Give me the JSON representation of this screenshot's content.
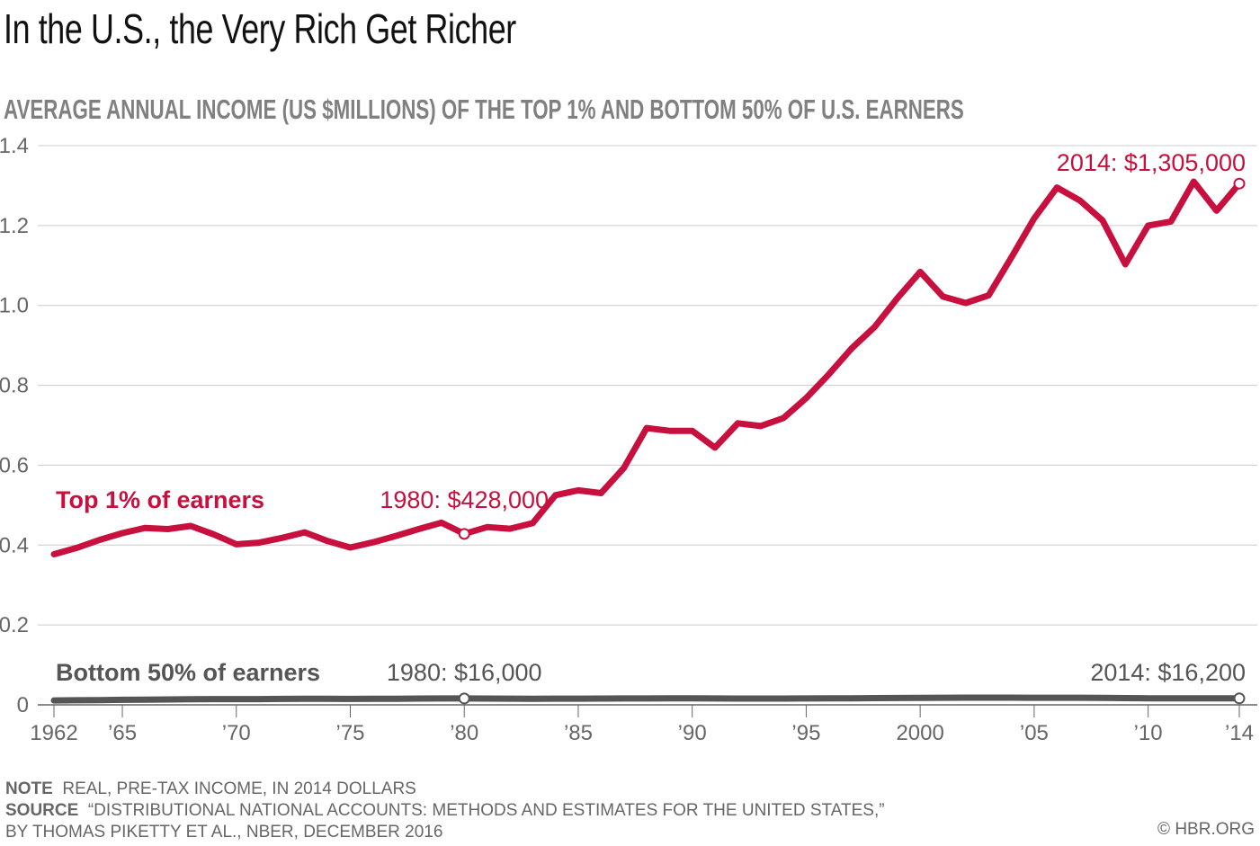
{
  "title": "In the U.S., the Very Rich Get Richer",
  "subtitle": "AVERAGE ANNUAL INCOME (US $MILLIONS) OF THE TOP 1% AND BOTTOM 50% OF U.S. EARNERS",
  "colors": {
    "top": "#c8103e",
    "bottom": "#555555",
    "grid": "#cccccc",
    "axis": "#666666"
  },
  "chart_data": {
    "type": "line",
    "title": "In the U.S., the Very Rich Get Richer",
    "subtitle": "AVERAGE ANNUAL INCOME (US $MILLIONS) OF THE TOP 1% AND BOTTOM 50% OF U.S. EARNERS",
    "xlabel": "",
    "ylabel": "",
    "ylim": [
      0,
      1.4
    ],
    "xlim": [
      1962,
      2014
    ],
    "grid": true,
    "y_ticks": [
      {
        "value": 0,
        "label": "0"
      },
      {
        "value": 0.2,
        "label": "0.2"
      },
      {
        "value": 0.4,
        "label": "0.4"
      },
      {
        "value": 0.6,
        "label": "0.6"
      },
      {
        "value": 0.8,
        "label": "0.8"
      },
      {
        "value": 1.0,
        "label": "1.0"
      },
      {
        "value": 1.2,
        "label": "1.2"
      },
      {
        "value": 1.4,
        "label": "$1.4"
      }
    ],
    "x_ticks": [
      {
        "value": 1962,
        "label": "1962"
      },
      {
        "value": 1965,
        "label": "’65"
      },
      {
        "value": 1970,
        "label": "’70"
      },
      {
        "value": 1975,
        "label": "’75"
      },
      {
        "value": 1980,
        "label": "’80"
      },
      {
        "value": 1985,
        "label": "’85"
      },
      {
        "value": 1990,
        "label": "’90"
      },
      {
        "value": 1995,
        "label": "’95"
      },
      {
        "value": 2000,
        "label": "2000"
      },
      {
        "value": 2005,
        "label": "’05"
      },
      {
        "value": 2010,
        "label": "’10"
      },
      {
        "value": 2014,
        "label": "’14"
      }
    ],
    "x": [
      1962,
      1963,
      1964,
      1965,
      1966,
      1967,
      1968,
      1969,
      1970,
      1971,
      1972,
      1973,
      1974,
      1975,
      1976,
      1977,
      1978,
      1979,
      1980,
      1981,
      1982,
      1983,
      1984,
      1985,
      1986,
      1987,
      1988,
      1989,
      1990,
      1991,
      1992,
      1993,
      1994,
      1995,
      1996,
      1997,
      1998,
      1999,
      2000,
      2001,
      2002,
      2003,
      2004,
      2005,
      2006,
      2007,
      2008,
      2009,
      2010,
      2011,
      2012,
      2013,
      2014
    ],
    "series": [
      {
        "name": "Top 1% of earners",
        "values": [
          0.377,
          0.393,
          0.413,
          0.43,
          0.443,
          0.44,
          0.448,
          0.427,
          0.402,
          0.406,
          0.418,
          0.432,
          0.41,
          0.394,
          0.407,
          0.423,
          0.44,
          0.456,
          0.428,
          0.445,
          0.441,
          0.455,
          0.525,
          0.537,
          0.53,
          0.593,
          0.693,
          0.686,
          0.686,
          0.644,
          0.705,
          0.698,
          0.718,
          0.768,
          0.828,
          0.893,
          0.946,
          1.018,
          1.084,
          1.022,
          1.006,
          1.025,
          1.12,
          1.218,
          1.295,
          1.263,
          1.213,
          1.103,
          1.2,
          1.21,
          1.31,
          1.237,
          1.305
        ]
      },
      {
        "name": "Bottom 50% of earners",
        "values": [
          0.011,
          0.0115,
          0.012,
          0.0125,
          0.013,
          0.0135,
          0.014,
          0.0145,
          0.0145,
          0.0145,
          0.0148,
          0.0152,
          0.0152,
          0.0148,
          0.015,
          0.0153,
          0.0157,
          0.016,
          0.016,
          0.0158,
          0.0155,
          0.0153,
          0.0155,
          0.0156,
          0.0157,
          0.0159,
          0.016,
          0.0162,
          0.0162,
          0.016,
          0.0157,
          0.0157,
          0.0157,
          0.0159,
          0.0162,
          0.0165,
          0.0168,
          0.0172,
          0.0176,
          0.0178,
          0.018,
          0.018,
          0.018,
          0.0178,
          0.0178,
          0.0178,
          0.0175,
          0.0168,
          0.0165,
          0.0162,
          0.0162,
          0.0162,
          0.0162
        ]
      }
    ],
    "series_labels": {
      "top": "Top 1% of earners",
      "bottom": "Bottom 50% of earners"
    },
    "annotations": [
      {
        "series": "top",
        "year": 1980,
        "value": 0.428,
        "text": "1980: $428,000"
      },
      {
        "series": "top",
        "year": 2014,
        "value": 1.305,
        "text": "2014: $1,305,000"
      },
      {
        "series": "bottom",
        "year": 1980,
        "value": 0.016,
        "text": "1980: $16,000"
      },
      {
        "series": "bottom",
        "year": 2014,
        "value": 0.0162,
        "text": "2014: $16,200"
      }
    ]
  },
  "footer": {
    "note_label": "NOTE",
    "note_text": "REAL, PRE-TAX INCOME, IN 2014 DOLLARS",
    "source_label": "SOURCE",
    "source_line1": "“DISTRIBUTIONAL NATIONAL ACCOUNTS: METHODS AND ESTIMATES FOR THE UNITED STATES,”",
    "source_line2": "BY THOMAS PIKETTY ET AL., NBER, DECEMBER 2016",
    "copyright": "© HBR.ORG"
  }
}
